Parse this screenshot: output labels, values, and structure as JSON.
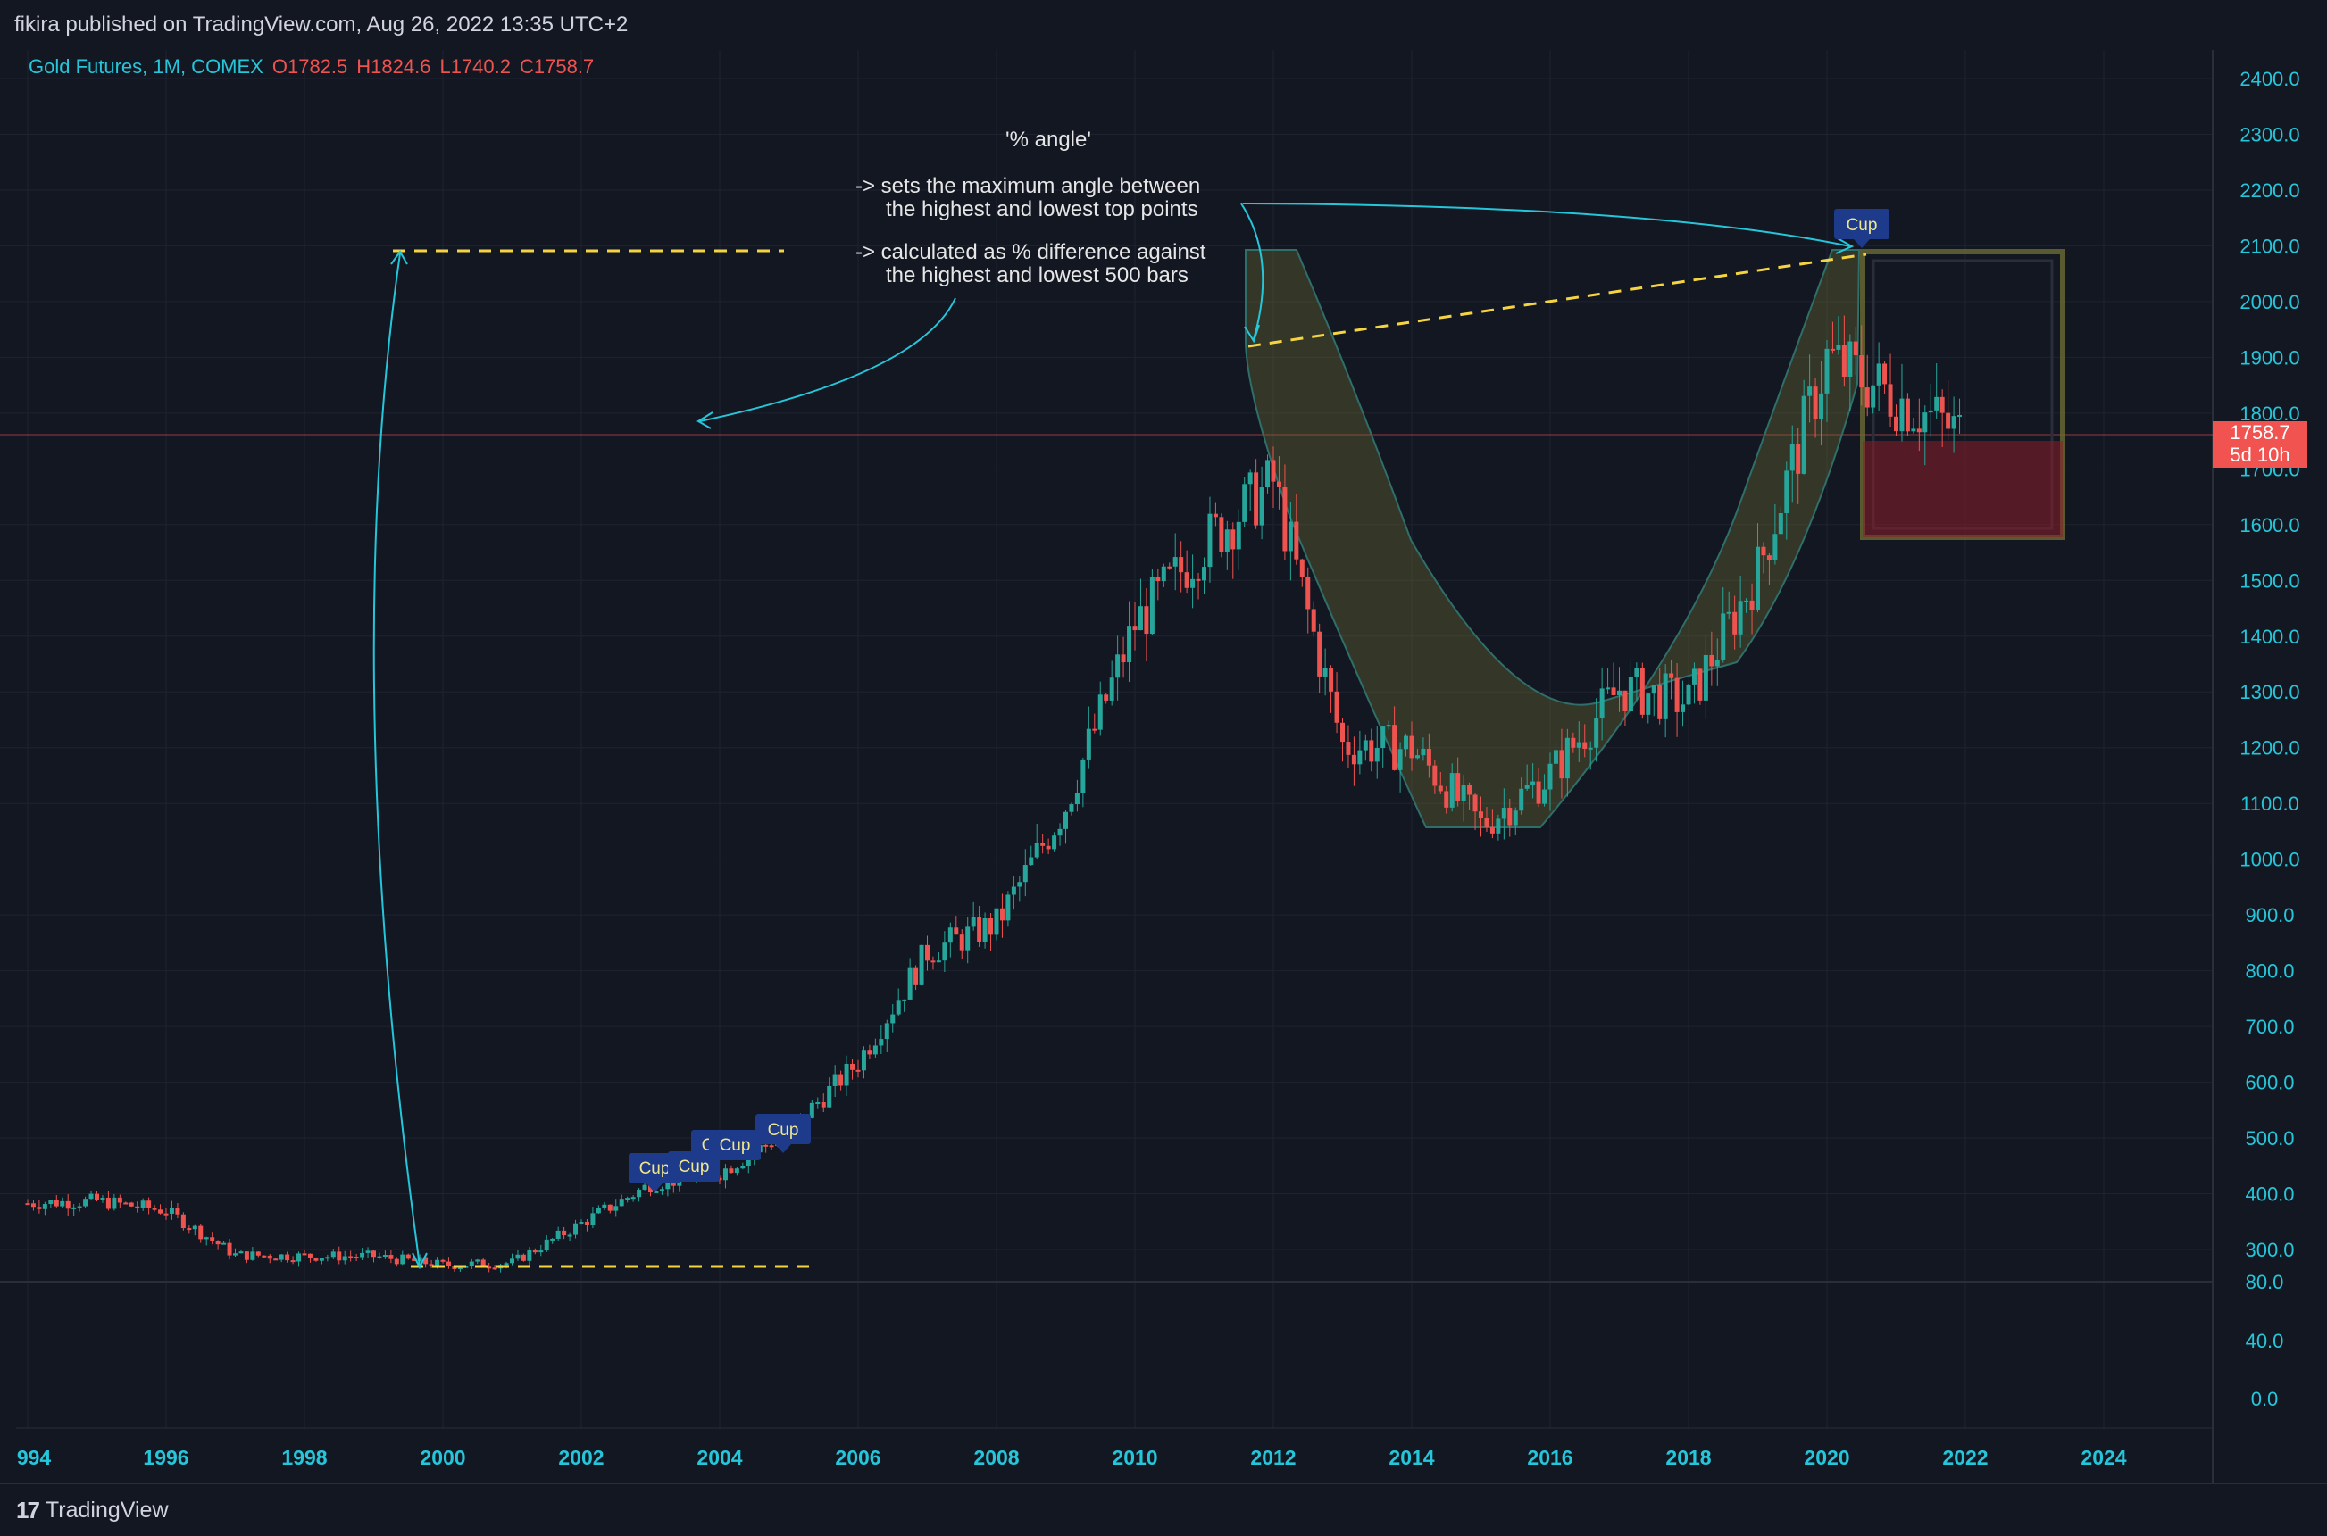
{
  "header": {
    "publish_line": "fikira published on TradingView.com, Aug 26, 2022 13:35 UTC+2"
  },
  "legend": {
    "symbol": "Gold Futures, 1M, COMEX",
    "open": "O1782.5",
    "high": "H1824.6",
    "low": "L1740.2",
    "close": "C1758.7"
  },
  "annotations": {
    "title": "'% angle'",
    "line1": "-> sets the maximum angle between",
    "line2": "the highest and lowest top points",
    "line3": "-> calculated as % difference against",
    "line4": "the highest and lowest 500 bars"
  },
  "price_axis": {
    "labels": [
      "2400.0",
      "2300.0",
      "2200.0",
      "2100.0",
      "2000.0",
      "1900.0",
      "1800.0",
      "1700.0",
      "1600.0",
      "1500.0",
      "1400.0",
      "1300.0",
      "1200.0",
      "1100.0",
      "1000.0",
      "900.0",
      "800.0",
      "700.0",
      "600.0",
      "500.0",
      "400.0",
      "300.0"
    ],
    "current_price": "1758.7",
    "countdown": "5d 10h"
  },
  "indicator_axis": {
    "labels": [
      "80.0",
      "40.0",
      "0.0"
    ]
  },
  "time_axis": {
    "labels": [
      "994",
      "1996",
      "1998",
      "2000",
      "2002",
      "2004",
      "2006",
      "2008",
      "2010",
      "2012",
      "2014",
      "2016",
      "2018",
      "2020",
      "2022",
      "2024"
    ]
  },
  "pattern_labels": [
    "Cup",
    "Cup",
    "Cup",
    "Cup",
    "Cup",
    "Cup"
  ],
  "colors": {
    "background": "#131722",
    "bull": "#26a69a",
    "bear": "#ef5350",
    "accent": "#26c6da",
    "dashed": "#f5d442",
    "label_bg": "#1e3a8a"
  },
  "footer": {
    "brand": "TradingView"
  },
  "chart_data": {
    "type": "candlestick",
    "title": "Gold Futures, 1M, COMEX",
    "x": [
      1994,
      1995,
      1996,
      1997,
      1998,
      1999,
      2000,
      2001,
      2002,
      2003,
      2004,
      2005,
      2006,
      2007,
      2008,
      2009,
      2010,
      2011,
      2012,
      2013,
      2014,
      2015,
      2016,
      2017,
      2018,
      2019,
      2020,
      2021,
      2022
    ],
    "close_approx": [
      383,
      387,
      370,
      290,
      288,
      288,
      272,
      276,
      347,
      417,
      438,
      513,
      636,
      834,
      884,
      1097,
      1421,
      1566,
      1676,
      1205,
      1199,
      1061,
      1152,
      1306,
      1282,
      1517,
      1898,
      1829,
      1758
    ],
    "high_points": [
      {
        "x": 2011.7,
        "y": 1920
      },
      {
        "x": 2020.6,
        "y": 2089
      }
    ],
    "low_point": {
      "x": 1999.7,
      "y": 252
    },
    "ylim": [
      240,
      2450
    ]
  }
}
